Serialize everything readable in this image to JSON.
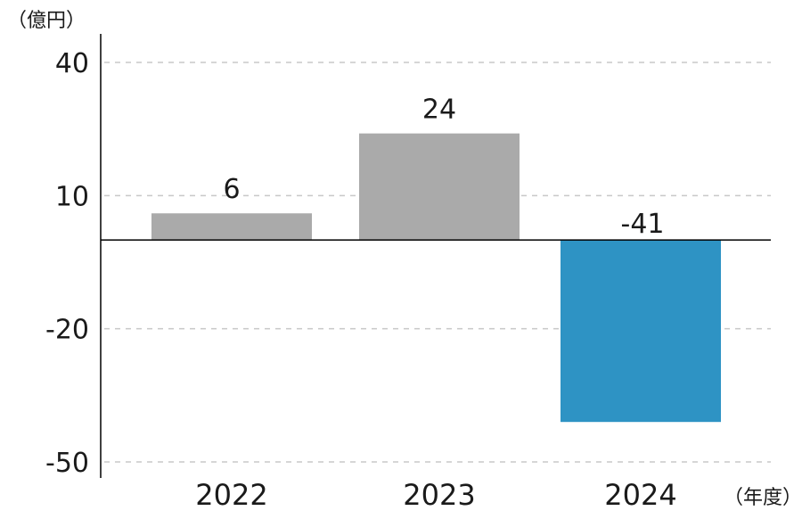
{
  "chart_data": {
    "type": "bar",
    "title": "",
    "ylabel": "（億円）",
    "xlabel": "（年度）",
    "categories": [
      "2022",
      "2023",
      "2024"
    ],
    "values": [
      6,
      24,
      -41
    ],
    "value_labels": [
      "6",
      "24",
      "-41"
    ],
    "ylim": [
      -50,
      40
    ],
    "yticks": [
      40,
      10,
      -20,
      -50
    ],
    "ytick_labels": [
      "40",
      "10",
      "-20",
      "-50"
    ],
    "grid": true,
    "colors": {
      "default_bar": "#aaaaaa",
      "highlight_bar": "#2e93c4",
      "axis": "#000000",
      "grid": "#c8c8c8"
    },
    "highlight_category": "2024"
  }
}
